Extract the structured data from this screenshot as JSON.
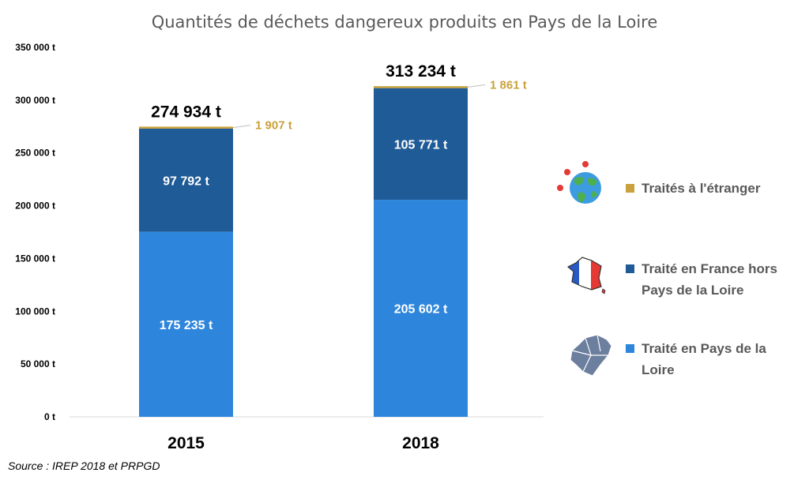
{
  "chart_data": {
    "type": "bar",
    "stacked": true,
    "title": "Quantités de déchets dangereux produits en Pays de la Loire",
    "categories": [
      "2015",
      "2018"
    ],
    "ylim": [
      0,
      350000
    ],
    "yticks": [
      0,
      50000,
      100000,
      150000,
      200000,
      250000,
      300000,
      350000
    ],
    "ytick_labels": [
      "0 t",
      "50 000 t",
      "100 000 t",
      "150 000 t",
      "200 000 t",
      "250 000 t",
      "300 000 t",
      "350 000 t"
    ],
    "grid": false,
    "legend_position": "right",
    "series": [
      {
        "name": "Traité en Pays de la Loire",
        "values": [
          175235,
          205602
        ],
        "labels": [
          "175 235 t",
          "205 602 t"
        ],
        "color": "#2e86dc",
        "icon": "pays-de-la-loire-map-icon"
      },
      {
        "name": "Traité en France hors Pays de la Loire",
        "values": [
          97792,
          105771
        ],
        "labels": [
          "97 792 t",
          "105 771 t"
        ],
        "color": "#1f5b96",
        "icon": "france-flag-map-icon"
      },
      {
        "name": "Traités à l'étranger",
        "values": [
          1907,
          1861
        ],
        "labels": [
          "1 907 t",
          "1 861 t"
        ],
        "color": "#c9a23c",
        "icon": "globe-icon"
      }
    ],
    "totals": [
      274934,
      313234
    ],
    "total_labels": [
      "274 934 t",
      "313 234 t"
    ],
    "legend": [
      {
        "label_lines": [
          "Traités à l'étranger"
        ],
        "color": "#c9a23c",
        "icon": "globe-icon"
      },
      {
        "label_lines": [
          "Traité en France hors",
          "Pays de la Loire"
        ],
        "color": "#1f5b96",
        "icon": "france-flag-map-icon"
      },
      {
        "label_lines": [
          "Traité en Pays de la",
          "Loire"
        ],
        "color": "#2e86dc",
        "icon": "pays-de-la-loire-map-icon"
      }
    ]
  },
  "source": "Source : IREP 2018 et PRPGD"
}
